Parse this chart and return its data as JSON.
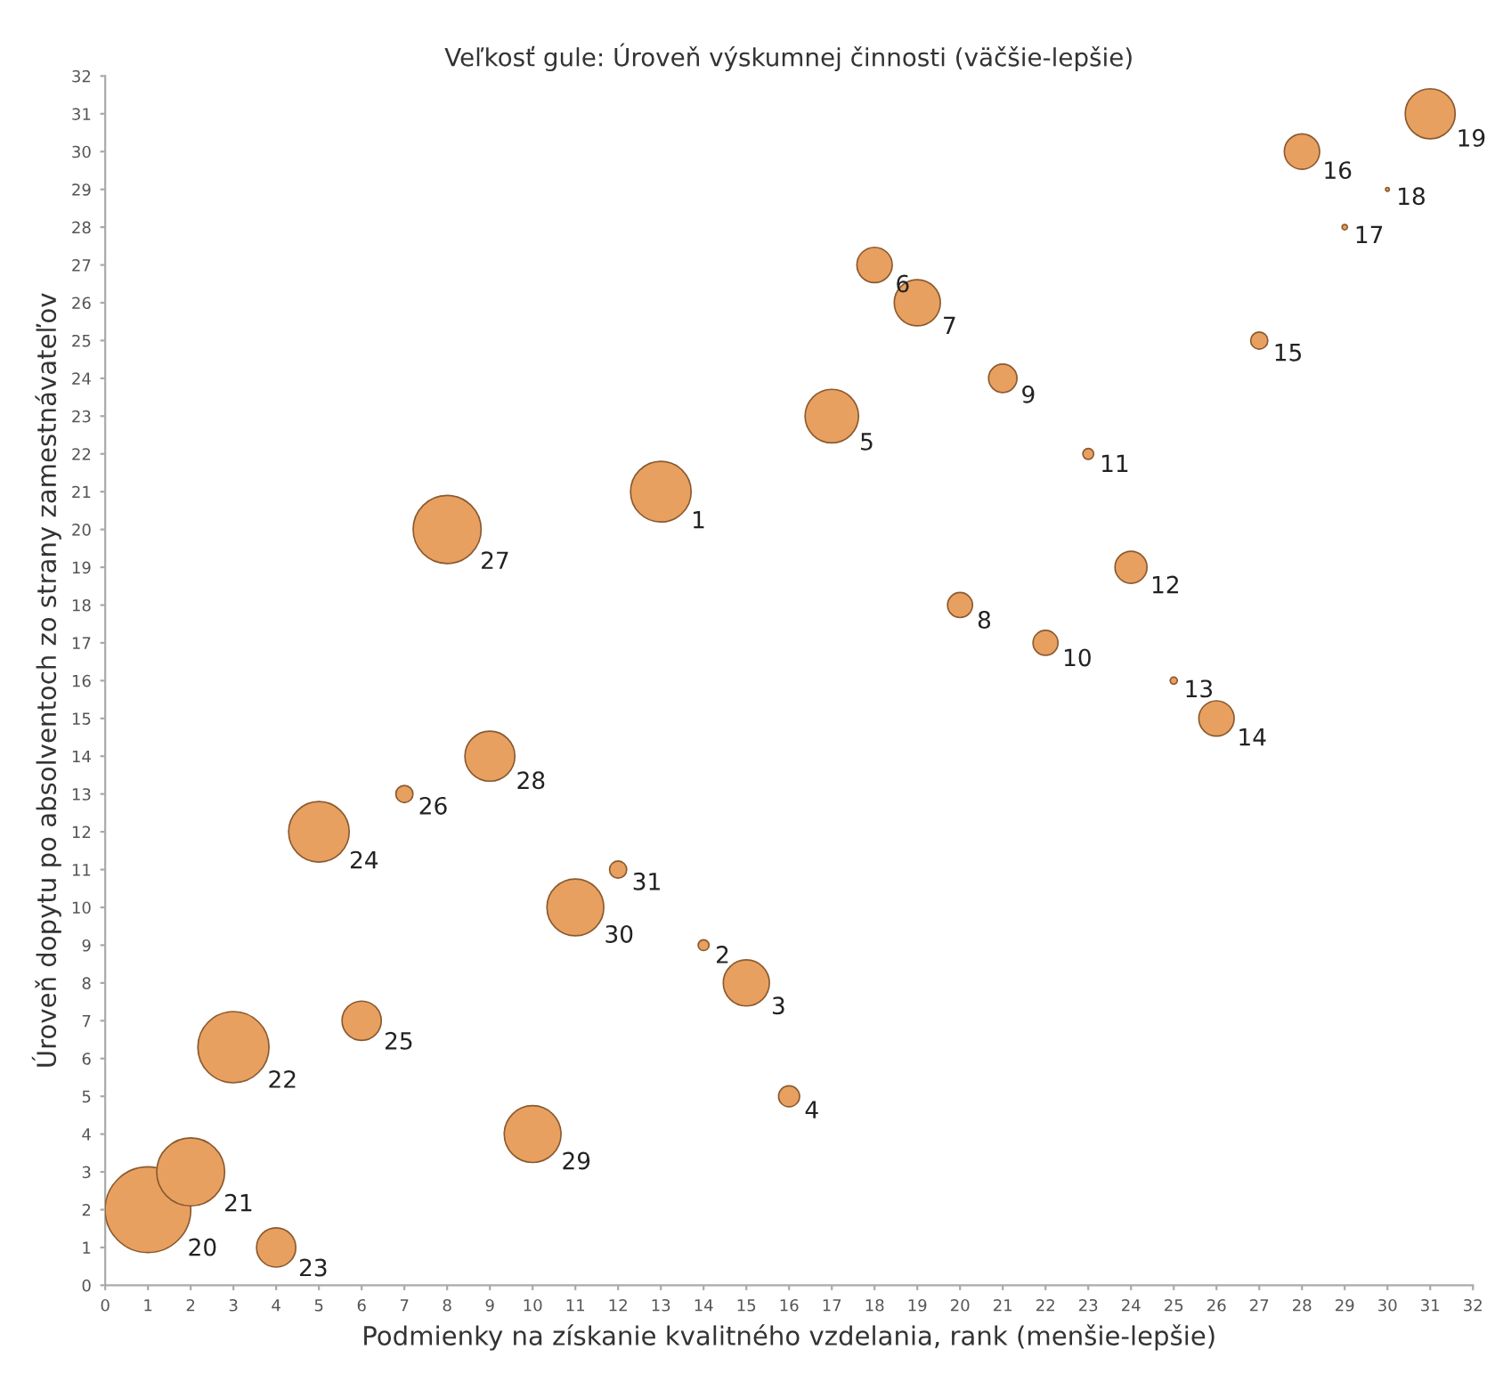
{
  "chart_data": {
    "type": "bubble",
    "title": "Veľkosť gule: Úroveň výskumnej činnosti (väčšie-lepšie)",
    "xlabel": "Podmienky na získanie kvalitného vzdelania, rank (menšie-lepšie)",
    "ylabel": "Úroveň dopytu po absolventoch zo strany zamestnávateľov",
    "x": [
      13,
      14,
      15,
      16,
      17,
      18,
      19,
      20,
      21,
      22,
      23,
      24,
      25,
      26,
      27,
      28,
      29,
      30,
      31,
      1,
      2,
      3,
      4,
      5,
      6,
      7,
      8,
      9,
      10,
      11,
      12
    ],
    "series": [
      {
        "color": "#e8a060",
        "values": [
          21,
          9,
          8,
          5,
          23,
          27,
          26,
          18,
          24,
          17,
          22,
          19,
          16,
          15,
          25,
          30,
          28,
          29,
          31,
          2,
          3,
          6.3,
          1,
          12,
          7,
          13,
          20,
          14,
          4,
          10,
          11
        ],
        "sizes": [
          0.5,
          0.016,
          0.29,
          0.06,
          0.39,
          0.17,
          0.29,
          0.085,
          0.11,
          0.085,
          0.016,
          0.14,
          0.007,
          0.17,
          0.04,
          0.17,
          0.004,
          0.002,
          0.34,
          1,
          0.63,
          0.69,
          0.21,
          0.5,
          0.21,
          0.04,
          0.63,
          0.34,
          0.44,
          0.44,
          0.04
        ]
      }
    ],
    "annotations": [
      {
        "text": "1",
        "x": 13,
        "y": 21
      },
      {
        "text": "2",
        "x": 14,
        "y": 9
      },
      {
        "text": "3",
        "x": 15,
        "y": 8
      },
      {
        "text": "4",
        "x": 16,
        "y": 5
      },
      {
        "text": "5",
        "x": 17,
        "y": 23
      },
      {
        "text": "6",
        "x": 18,
        "y": 27
      },
      {
        "text": "7",
        "x": 19,
        "y": 26
      },
      {
        "text": "8",
        "x": 20,
        "y": 18
      },
      {
        "text": "9",
        "x": 21,
        "y": 24
      },
      {
        "text": "10",
        "x": 22,
        "y": 17
      },
      {
        "text": "11",
        "x": 23,
        "y": 22
      },
      {
        "text": "12",
        "x": 24,
        "y": 19
      },
      {
        "text": "13",
        "x": 25,
        "y": 16
      },
      {
        "text": "14",
        "x": 26,
        "y": 15
      },
      {
        "text": "15",
        "x": 27,
        "y": 25
      },
      {
        "text": "16",
        "x": 28,
        "y": 30
      },
      {
        "text": "17",
        "x": 29,
        "y": 28
      },
      {
        "text": "18",
        "x": 30,
        "y": 29
      },
      {
        "text": "19",
        "x": 31,
        "y": 31
      },
      {
        "text": "20",
        "x": 1,
        "y": 2
      },
      {
        "text": "21",
        "x": 2,
        "y": 3
      },
      {
        "text": "22",
        "x": 3,
        "y": 6.3
      },
      {
        "text": "23",
        "x": 4,
        "y": 1
      },
      {
        "text": "24",
        "x": 5,
        "y": 12
      },
      {
        "text": "25",
        "x": 6,
        "y": 7
      },
      {
        "text": "26",
        "x": 7,
        "y": 13
      },
      {
        "text": "27",
        "x": 8,
        "y": 20
      },
      {
        "text": "28",
        "x": 9,
        "y": 14
      },
      {
        "text": "29",
        "x": 10,
        "y": 4
      },
      {
        "text": "30",
        "x": 11,
        "y": 10
      },
      {
        "text": "31",
        "x": 12,
        "y": 11
      }
    ],
    "xlim": [
      0,
      32
    ],
    "ylim": [
      0,
      32
    ],
    "xticks": [
      0,
      1,
      2,
      3,
      4,
      5,
      6,
      7,
      8,
      9,
      10,
      11,
      12,
      13,
      14,
      15,
      16,
      17,
      18,
      19,
      20,
      21,
      22,
      23,
      24,
      25,
      26,
      27,
      28,
      29,
      30,
      31,
      32
    ],
    "yticks": [
      0,
      1,
      2,
      3,
      4,
      5,
      6,
      7,
      8,
      9,
      10,
      11,
      12,
      13,
      14,
      15,
      16,
      17,
      18,
      19,
      20,
      21,
      22,
      23,
      24,
      25,
      26,
      27,
      28,
      29,
      30,
      31,
      32
    ],
    "grid": false,
    "legend": false
  }
}
